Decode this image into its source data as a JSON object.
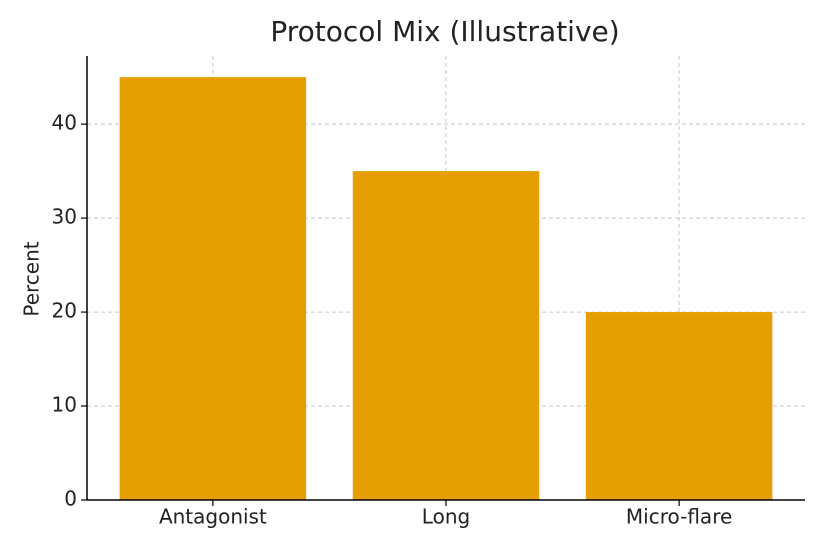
{
  "chart_data": {
    "type": "bar",
    "title": "Protocol Mix (Illustrative)",
    "ylabel": "Percent",
    "categories": [
      "Antagonist",
      "Long",
      "Micro-flare"
    ],
    "values": [
      45,
      35,
      20
    ],
    "color": "#E69F00",
    "ylim": [
      0,
      47.25
    ],
    "yticks": [
      0,
      10,
      20,
      30,
      40
    ],
    "grid": true
  }
}
